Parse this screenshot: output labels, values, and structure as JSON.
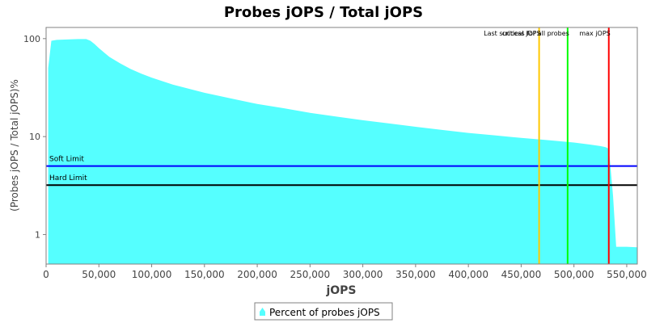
{
  "chart_data": {
    "type": "area",
    "title": "Probes jOPS / Total jOPS",
    "xlabel": "jOPS",
    "ylabel": "(Probes jOPS / Total jOPS)%",
    "xlim": [
      0,
      560000
    ],
    "ylim": [
      0.5,
      130
    ],
    "y_scale": "log",
    "grid": false,
    "legend_position": "bottom",
    "x_ticks": [
      {
        "value": 0,
        "label": "0"
      },
      {
        "value": 50000,
        "label": "50,000"
      },
      {
        "value": 100000,
        "label": "100,000"
      },
      {
        "value": 150000,
        "label": "150,000"
      },
      {
        "value": 200000,
        "label": "200,000"
      },
      {
        "value": 250000,
        "label": "250,000"
      },
      {
        "value": 300000,
        "label": "300,000"
      },
      {
        "value": 350000,
        "label": "350,000"
      },
      {
        "value": 400000,
        "label": "400,000"
      },
      {
        "value": 450000,
        "label": "450,000"
      },
      {
        "value": 500000,
        "label": "500,000"
      },
      {
        "value": 550000,
        "label": "550,000"
      }
    ],
    "y_ticks": [
      {
        "value": 1,
        "label": "1"
      },
      {
        "value": 10,
        "label": "10"
      },
      {
        "value": 100,
        "label": "100"
      }
    ],
    "series": [
      {
        "name": "Percent of probes jOPS",
        "color": "#55ffff",
        "x": [
          2000,
          5000,
          10000,
          20000,
          30000,
          38000,
          42000,
          46000,
          50000,
          55000,
          60000,
          70000,
          80000,
          90000,
          100000,
          120000,
          150000,
          175000,
          200000,
          225000,
          250000,
          275000,
          300000,
          325000,
          350000,
          375000,
          400000,
          425000,
          450000,
          475000,
          500000,
          515000,
          525000,
          530000,
          533000,
          537000,
          540000,
          545000,
          550000,
          560000
        ],
        "y": [
          50,
          95,
          97,
          98,
          99,
          99,
          95,
          88,
          80,
          72,
          65,
          56,
          49,
          44,
          40,
          34,
          28,
          24.5,
          21.5,
          19.5,
          17.5,
          16,
          14.7,
          13.6,
          12.6,
          11.7,
          10.9,
          10.3,
          9.7,
          9.2,
          8.7,
          8.3,
          8,
          7.8,
          7.5,
          2.5,
          0.75,
          0.75,
          0.75,
          0.74
        ]
      }
    ],
    "horizontal_lines": [
      {
        "label": "Soft Limit",
        "value": 5,
        "color": "#0000ff"
      },
      {
        "label": "Hard Limit",
        "value": 3.2,
        "color": "#000000"
      }
    ],
    "vertical_lines": [
      {
        "label": "critical jOPS",
        "value": 467000,
        "color": "#ffc800"
      },
      {
        "label": "Last success for all probes",
        "value": 494000,
        "color": "#00ff00"
      },
      {
        "label": "max jOPS",
        "value": 533000,
        "color": "#ff0000"
      }
    ]
  }
}
